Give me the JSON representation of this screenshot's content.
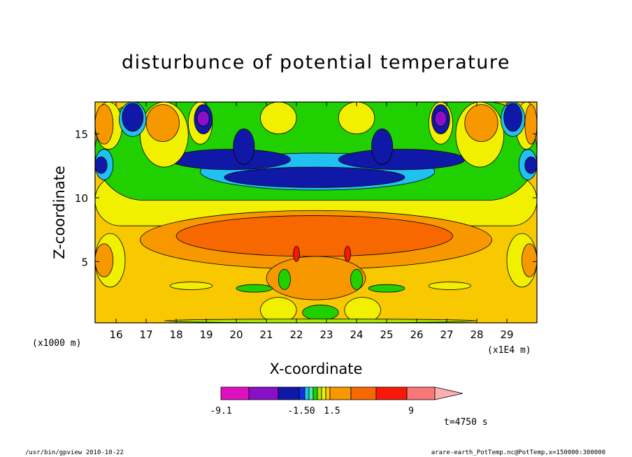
{
  "chart_data": {
    "type": "heatmap",
    "title": "disturbunce of potential temperature",
    "xlabel": "X-coordinate",
    "ylabel": "Z-coordinate",
    "x_unit_left": "(x1000 m)",
    "x_unit_right": "(x1E4 m)",
    "xlim": [
      15.3,
      30.0
    ],
    "ylim": [
      0.2,
      17.5
    ],
    "x_ticks": [
      "16",
      "17",
      "18",
      "19",
      "20",
      "21",
      "22",
      "23",
      "24",
      "25",
      "26",
      "27",
      "28",
      "29"
    ],
    "y_ticks": [
      "5",
      "10",
      "15"
    ],
    "x_tick_values": [
      16,
      17,
      18,
      19,
      20,
      21,
      22,
      23,
      24,
      25,
      26,
      27,
      28,
      29
    ],
    "y_tick_values": [
      5,
      10,
      15
    ],
    "colorbar": {
      "labels": [
        "-9.1",
        "-1.50",
        "1.5",
        "9"
      ],
      "colors": [
        "#e010c0",
        "#8a10c8",
        "#1018a8",
        "#1030e0",
        "#20c0f0",
        "#40f0a0",
        "#20d000",
        "#a8e800",
        "#f0f000",
        "#f8c800",
        "#f89800",
        "#f86800",
        "#f81808",
        "#f87878",
        "#f8b0b0"
      ]
    },
    "regions": [
      {
        "color": "#f8c800",
        "x0": 15.3,
        "x1": 30.0,
        "y0": 0.2,
        "y1": 17.5
      },
      {
        "color": "#f0f000",
        "x0": 15.3,
        "x1": 30.0,
        "y0": 7.8,
        "y1": 11.8
      },
      {
        "color": "#20d000",
        "x0": 15.3,
        "x1": 30.0,
        "y0": 9.8,
        "y1": 17.5
      },
      {
        "color": "#20c0f0",
        "x0": 18.8,
        "x1": 26.6,
        "y0": 10.6,
        "y1": 13.5
      },
      {
        "color": "#1018a8",
        "x0": 19.6,
        "x1": 25.6,
        "y0": 10.8,
        "y1": 12.4
      },
      {
        "color": "#1018a8",
        "x0": 17.8,
        "x1": 21.8,
        "y0": 12.2,
        "y1": 13.8
      },
      {
        "color": "#1018a8",
        "x0": 23.4,
        "x1": 27.6,
        "y0": 12.2,
        "y1": 13.8
      },
      {
        "color": "#1018a8",
        "x0": 19.9,
        "x1": 20.6,
        "y0": 12.6,
        "y1": 15.4
      },
      {
        "color": "#1018a8",
        "x0": 24.5,
        "x1": 25.2,
        "y0": 12.6,
        "y1": 15.4
      },
      {
        "color": "#20c0f0",
        "x0": 15.3,
        "x1": 15.9,
        "y0": 11.4,
        "y1": 13.8
      },
      {
        "color": "#1018a8",
        "x0": 15.3,
        "x1": 15.7,
        "y0": 11.9,
        "y1": 13.2
      },
      {
        "color": "#20c0f0",
        "x0": 29.4,
        "x1": 30.0,
        "y0": 11.4,
        "y1": 13.8
      },
      {
        "color": "#1018a8",
        "x0": 29.6,
        "x1": 30.0,
        "y0": 11.9,
        "y1": 13.2
      },
      {
        "color": "#f0f000",
        "x0": 15.3,
        "x1": 16.2,
        "y0": 13.8,
        "y1": 17.5
      },
      {
        "color": "#f89800",
        "x0": 15.3,
        "x1": 15.9,
        "y0": 14.2,
        "y1": 17.3
      },
      {
        "color": "#f0f000",
        "x0": 16.8,
        "x1": 18.4,
        "y0": 12.4,
        "y1": 17.5
      },
      {
        "color": "#f89800",
        "x0": 17.0,
        "x1": 18.1,
        "y0": 14.4,
        "y1": 17.3
      },
      {
        "color": "#f0f000",
        "x0": 27.3,
        "x1": 28.9,
        "y0": 12.4,
        "y1": 17.5
      },
      {
        "color": "#f89800",
        "x0": 27.6,
        "x1": 28.7,
        "y0": 14.4,
        "y1": 17.3
      },
      {
        "color": "#f0f000",
        "x0": 29.3,
        "x1": 30.0,
        "y0": 13.8,
        "y1": 17.5
      },
      {
        "color": "#f89800",
        "x0": 29.6,
        "x1": 30.0,
        "y0": 14.2,
        "y1": 17.3
      },
      {
        "color": "#20c0f0",
        "x0": 16.1,
        "x1": 17.0,
        "y0": 14.8,
        "y1": 17.5
      },
      {
        "color": "#1018a8",
        "x0": 16.2,
        "x1": 16.9,
        "y0": 15.2,
        "y1": 17.4
      },
      {
        "color": "#20c0f0",
        "x0": 28.8,
        "x1": 29.6,
        "y0": 14.8,
        "y1": 17.5
      },
      {
        "color": "#1018a8",
        "x0": 28.9,
        "x1": 29.5,
        "y0": 15.2,
        "y1": 17.4
      },
      {
        "color": "#f0f000",
        "x0": 18.4,
        "x1": 19.2,
        "y0": 14.2,
        "y1": 17.5
      },
      {
        "color": "#1018a8",
        "x0": 18.6,
        "x1": 19.2,
        "y0": 15.0,
        "y1": 17.3
      },
      {
        "color": "#8a10c8",
        "x0": 18.7,
        "x1": 19.1,
        "y0": 15.6,
        "y1": 16.8
      },
      {
        "color": "#f0f000",
        "x0": 26.4,
        "x1": 27.2,
        "y0": 14.2,
        "y1": 17.5
      },
      {
        "color": "#1018a8",
        "x0": 26.5,
        "x1": 27.1,
        "y0": 15.0,
        "y1": 17.3
      },
      {
        "color": "#8a10c8",
        "x0": 26.6,
        "x1": 27.0,
        "y0": 15.6,
        "y1": 16.8
      },
      {
        "color": "#f0f000",
        "x0": 20.8,
        "x1": 22.0,
        "y0": 15.0,
        "y1": 17.5
      },
      {
        "color": "#f0f000",
        "x0": 23.4,
        "x1": 24.6,
        "y0": 15.0,
        "y1": 17.5
      },
      {
        "color": "#f0f000",
        "x0": 15.3,
        "x1": 16.3,
        "y0": 3.0,
        "y1": 7.2
      },
      {
        "color": "#f89800",
        "x0": 15.3,
        "x1": 15.9,
        "y0": 3.8,
        "y1": 6.4
      },
      {
        "color": "#f0f000",
        "x0": 29.0,
        "x1": 30.0,
        "y0": 3.0,
        "y1": 7.2
      },
      {
        "color": "#f89800",
        "x0": 29.5,
        "x1": 30.0,
        "y0": 3.8,
        "y1": 6.4
      },
      {
        "color": "#f89800",
        "x0": 16.8,
        "x1": 28.5,
        "y0": 4.4,
        "y1": 9.0
      },
      {
        "color": "#f86800",
        "x0": 18.0,
        "x1": 27.2,
        "y0": 5.4,
        "y1": 8.6
      },
      {
        "color": "#f89800",
        "x0": 21.0,
        "x1": 24.3,
        "y0": 2.0,
        "y1": 5.4
      },
      {
        "color": "#f81808",
        "x0": 21.9,
        "x1": 22.1,
        "y0": 5.0,
        "y1": 6.2
      },
      {
        "color": "#f81808",
        "x0": 23.6,
        "x1": 23.8,
        "y0": 5.0,
        "y1": 6.2
      },
      {
        "color": "#f0f000",
        "x0": 17.8,
        "x1": 19.2,
        "y0": 2.8,
        "y1": 3.4
      },
      {
        "color": "#f0f000",
        "x0": 26.4,
        "x1": 27.8,
        "y0": 2.8,
        "y1": 3.4
      },
      {
        "color": "#20d000",
        "x0": 20.0,
        "x1": 21.2,
        "y0": 2.6,
        "y1": 3.2
      },
      {
        "color": "#20d000",
        "x0": 24.4,
        "x1": 25.6,
        "y0": 2.6,
        "y1": 3.2
      },
      {
        "color": "#f0f000",
        "x0": 20.8,
        "x1": 22.0,
        "y0": 0.2,
        "y1": 2.2
      },
      {
        "color": "#f0f000",
        "x0": 23.6,
        "x1": 24.8,
        "y0": 0.2,
        "y1": 2.2
      },
      {
        "color": "#20d000",
        "x0": 21.4,
        "x1": 21.8,
        "y0": 2.8,
        "y1": 4.4
      },
      {
        "color": "#20d000",
        "x0": 23.8,
        "x1": 24.2,
        "y0": 2.8,
        "y1": 4.4
      },
      {
        "color": "#20d000",
        "x0": 22.2,
        "x1": 23.4,
        "y0": 0.4,
        "y1": 1.6
      },
      {
        "color": "#1018a8",
        "x0": 21.4,
        "x1": 24.2,
        "y0": 0.2,
        "y1": 0.5
      },
      {
        "color": "#a8e800",
        "x0": 17.6,
        "x1": 28.0,
        "y0": 0.2,
        "y1": 0.5
      }
    ]
  },
  "time_label": "t=4750 s",
  "footer": {
    "left": "/usr/bin/gpview   2010-10-22",
    "right": "arare-earth_PotTemp.nc@PotTemp,x=150000:300000"
  }
}
